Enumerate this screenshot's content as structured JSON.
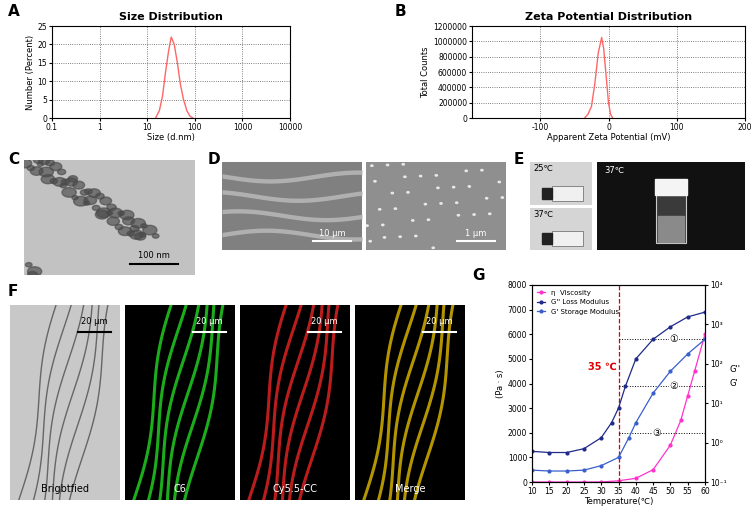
{
  "chart_data": [
    {
      "panel": "A",
      "type": "line",
      "title": "Size Distribution",
      "x_label": "Size (d.nm)",
      "y_label": "Number (Percent)",
      "x": [
        15,
        18,
        21,
        24,
        28,
        32,
        37,
        43,
        50,
        58,
        68,
        79,
        91
      ],
      "values": [
        0,
        2,
        6,
        12,
        18,
        22,
        20,
        15,
        9,
        5,
        2,
        0.5,
        0
      ],
      "color": "#ff6666",
      "log": "x",
      "xlim": [
        0.1,
        10000
      ],
      "xticks": [
        0.1,
        1,
        10,
        100,
        1000,
        10000
      ],
      "ylim": [
        0,
        25
      ],
      "yticks": [
        0,
        5,
        10,
        15,
        20,
        25
      ],
      "grid": true
    },
    {
      "panel": "B",
      "type": "line",
      "title": "Zeta Potential Distribution",
      "x_label": "Apparent Zeta Potential (mV)",
      "y_label": "Total Counts",
      "x": [
        -35,
        -30,
        -25,
        -20,
        -15,
        -10,
        -7,
        -3,
        0,
        3,
        6
      ],
      "values": [
        0,
        50000,
        150000,
        450000,
        850000,
        1050000,
        900000,
        500000,
        200000,
        50000,
        0
      ],
      "color": "#ff6666",
      "xlim": [
        -200,
        200
      ],
      "xticks": [
        -100,
        0,
        100,
        200
      ],
      "ylim": [
        0,
        1200000
      ],
      "yticks": [
        0,
        200000,
        400000,
        600000,
        800000,
        1000000,
        1200000
      ],
      "grid": true
    },
    {
      "panel": "G",
      "type": "line",
      "x_label": "Temperature(℃)",
      "y_label": "(Pa · s)",
      "y2_labels": [
        "G''",
        "G'"
      ],
      "series": [
        {
          "name": "η  Viscosity",
          "color": "#ff33cc",
          "marker": "o",
          "x": [
            10,
            15,
            20,
            25,
            30,
            35,
            40,
            45,
            50,
            53,
            55,
            57,
            60
          ],
          "values": [
            0,
            0,
            0,
            0,
            0,
            50,
            150,
            500,
            1500,
            2500,
            3500,
            4500,
            6000
          ]
        },
        {
          "name": "G'' Loss Modulus",
          "color": "#1f2a8a",
          "marker": "o",
          "axis": "y2",
          "x": [
            10,
            15,
            20,
            25,
            30,
            33,
            35,
            37,
            40,
            45,
            50,
            55,
            60
          ],
          "values": [
            0.6,
            0.56,
            0.56,
            0.7,
            1.33,
            3.2,
            7.5,
            27,
            133,
            420,
            870,
            1550,
            2050
          ]
        },
        {
          "name": "G' Storage Modulus",
          "color": "#3a5fcd",
          "marker": "o",
          "axis": "y2",
          "x": [
            10,
            15,
            20,
            25,
            30,
            35,
            38,
            40,
            45,
            50,
            55,
            60
          ],
          "values": [
            0.2,
            0.19,
            0.19,
            0.2,
            0.26,
            0.42,
            1.33,
            3.2,
            18,
            65,
            178,
            420
          ]
        }
      ],
      "xlim": [
        10,
        60
      ],
      "xticks": [
        10,
        15,
        20,
        25,
        30,
        35,
        40,
        45,
        50,
        55,
        60
      ],
      "ylim": [
        0,
        8000
      ],
      "yticks": [
        0,
        1000,
        2000,
        3000,
        4000,
        5000,
        6000,
        7000,
        8000
      ],
      "log": "y2",
      "y2lim": [
        0.1,
        10000
      ],
      "y2ticks": [
        {
          "value": 0.1,
          "label": "10⁻¹"
        },
        {
          "value": 1,
          "label": "10⁰"
        },
        {
          "value": 10,
          "label": "10¹"
        },
        {
          "value": 100,
          "label": "10²"
        },
        {
          "value": 1000,
          "label": "10³"
        },
        {
          "value": 10000,
          "label": "10⁴"
        }
      ],
      "legend": "upper left",
      "marker_line": {
        "x": 35,
        "label": "35 ℃",
        "color": "#e00000"
      },
      "guides": [
        {
          "label": "①",
          "y": 5800
        },
        {
          "label": "②",
          "y": 3900
        },
        {
          "label": "③",
          "y": 2000
        }
      ]
    }
  ],
  "images": [
    {
      "panel": "C",
      "scale_bar": "100 nm"
    },
    {
      "panel": "D",
      "scale_bars": [
        "10 μm",
        "1 μm"
      ]
    },
    {
      "panel": "E",
      "labels": [
        "25℃",
        "37℃",
        "37℃"
      ]
    },
    {
      "panel": "F",
      "frames": [
        {
          "label": "Brigbtfied",
          "color": "#555555",
          "scale_bar": "20 μm"
        },
        {
          "label": "C6",
          "color": "#22cc22",
          "scale_bar": "20 μm"
        },
        {
          "label": "Cy5.5-CC",
          "color": "#dd2222",
          "scale_bar": "20 μm"
        },
        {
          "label": "Merge",
          "color": "#d4b000",
          "scale_bar": "20 μm"
        }
      ]
    }
  ]
}
